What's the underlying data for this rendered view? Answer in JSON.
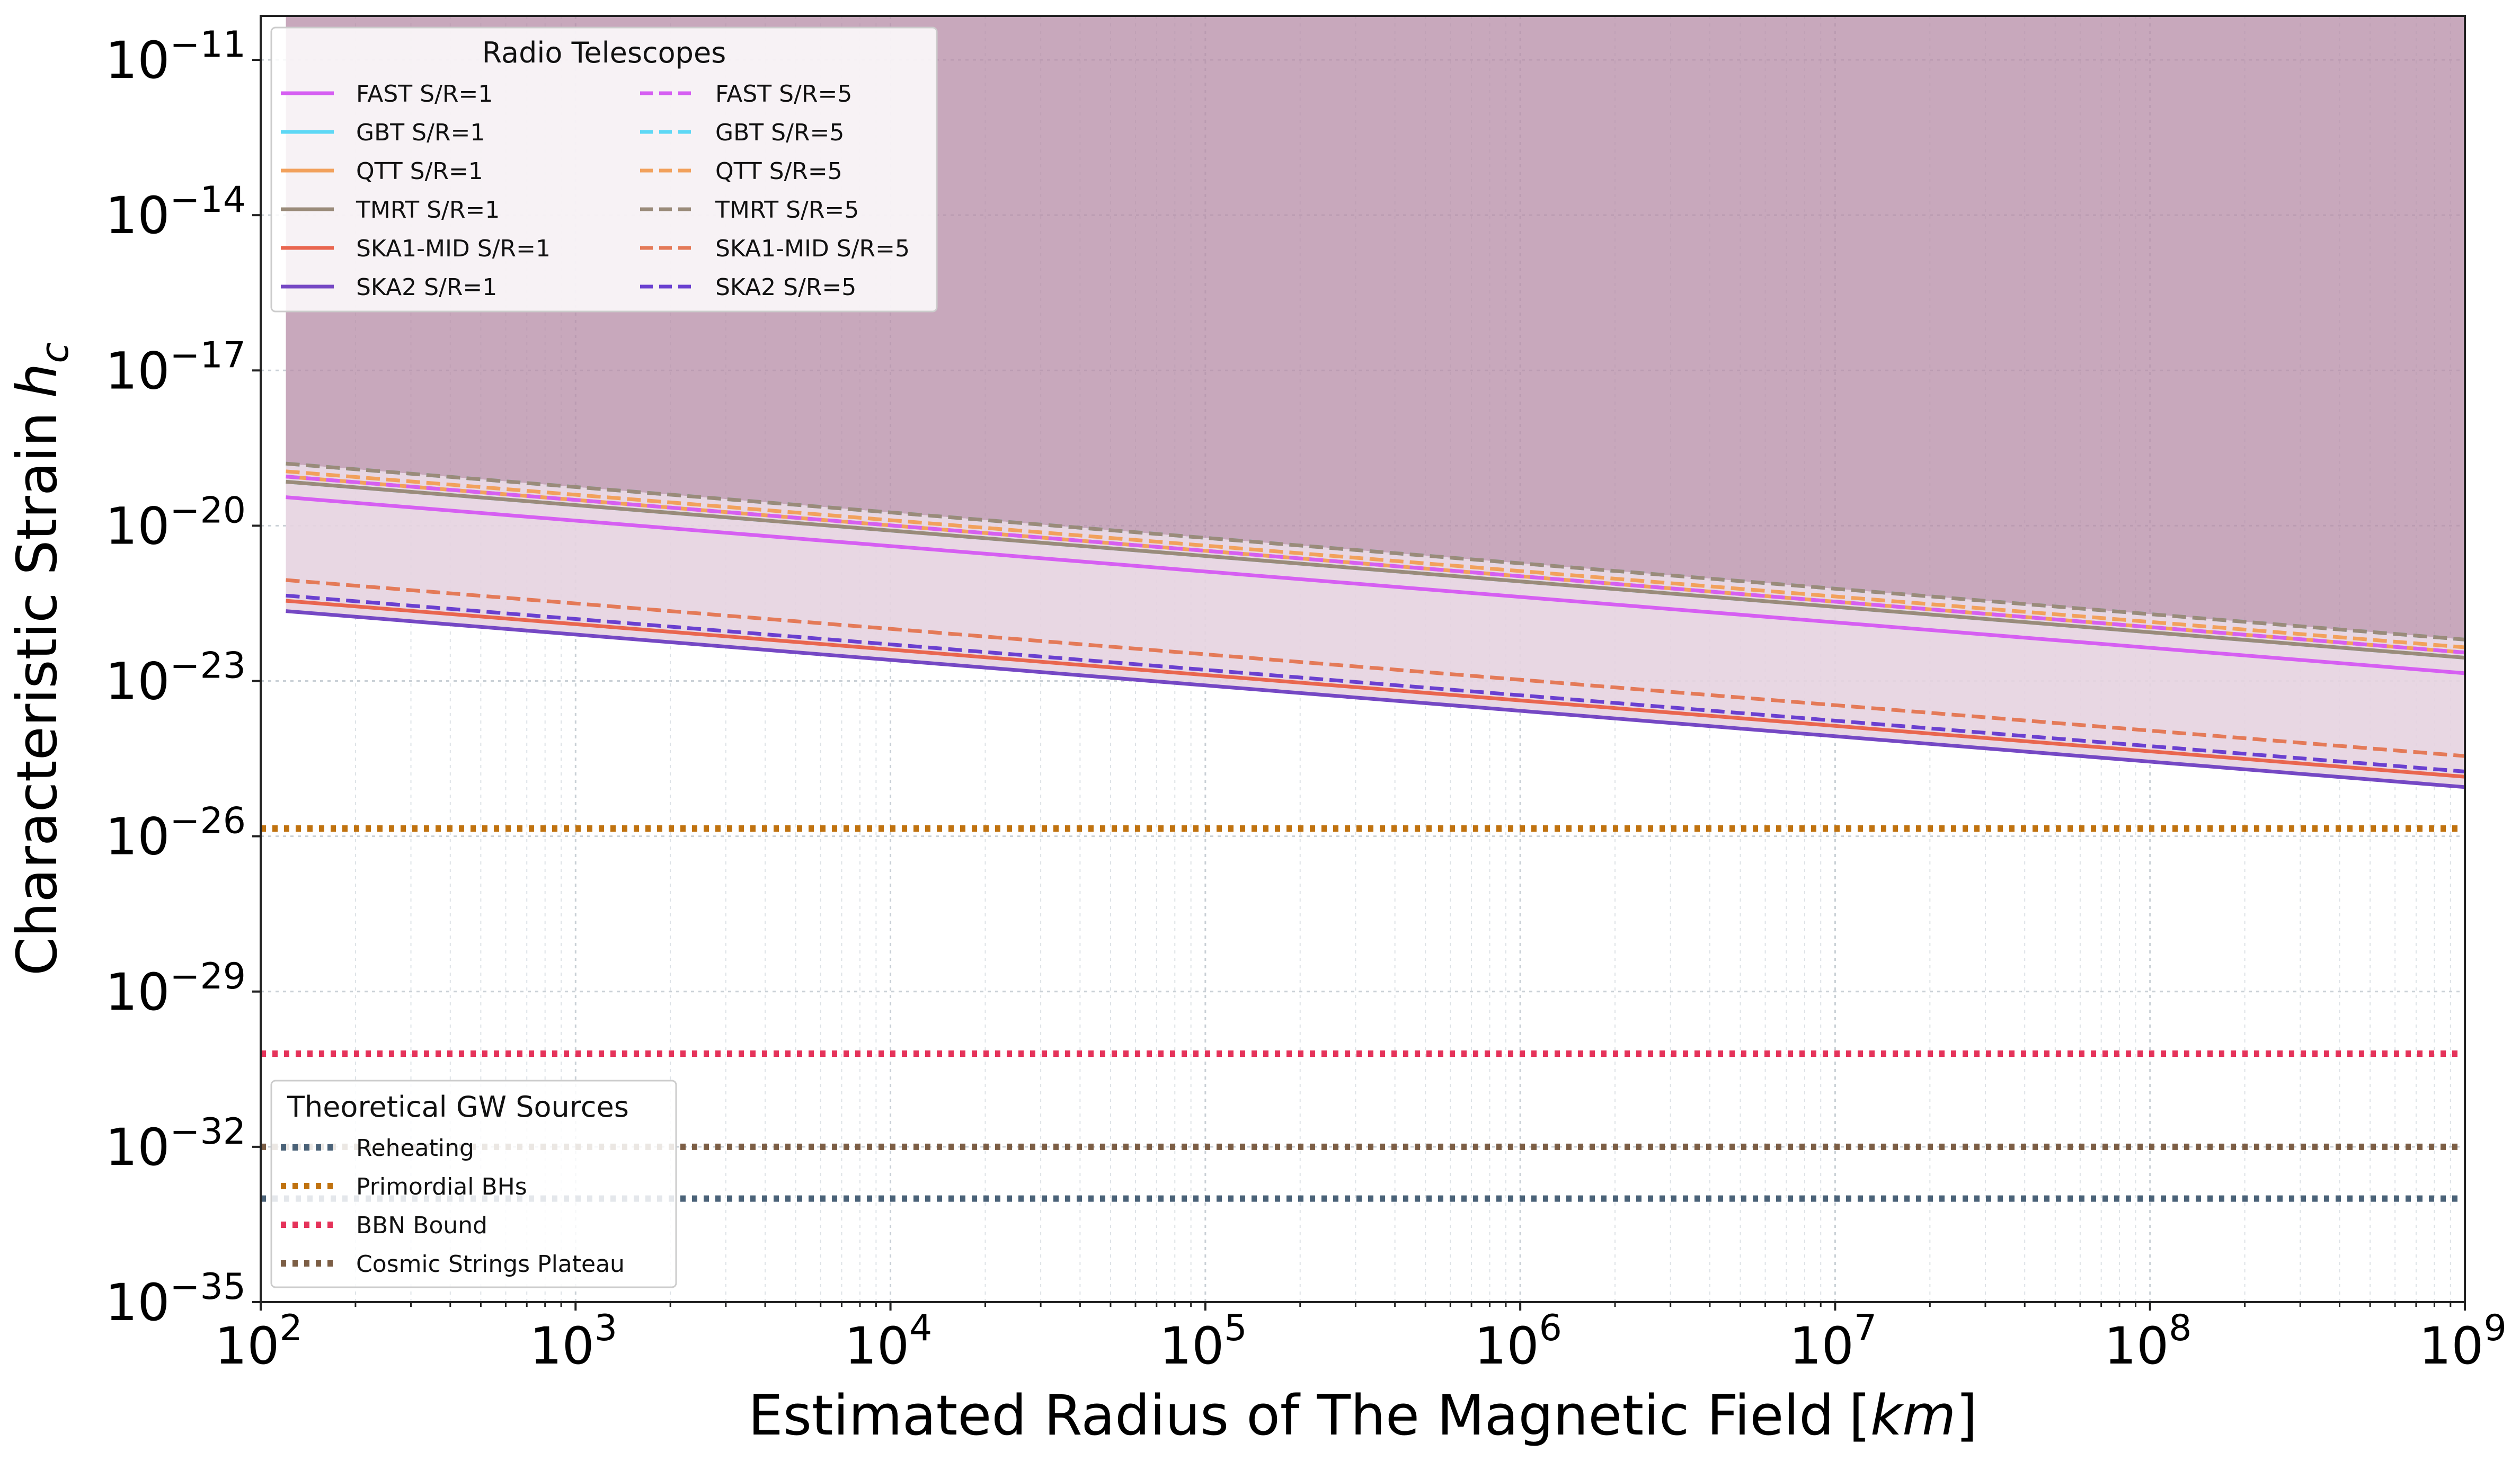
{
  "chart_data": {
    "type": "line",
    "title": "",
    "xlabel": "Estimated Radius of The Magnetic Field",
    "xlabel_unit": "km",
    "ylabel": "Characteristic Strain",
    "ylabel_symbol": "h",
    "ylabel_subscript": "c",
    "xscale": "log",
    "yscale": "log",
    "xlim_exp": [
      2,
      9
    ],
    "ylim_exp": [
      -35,
      -10.15
    ],
    "grid": true,
    "x_ticks": [
      {
        "base": "10",
        "exp": "2",
        "value": 2
      },
      {
        "base": "10",
        "exp": "3",
        "value": 3
      },
      {
        "base": "10",
        "exp": "4",
        "value": 4
      },
      {
        "base": "10",
        "exp": "5",
        "value": 5
      },
      {
        "base": "10",
        "exp": "6",
        "value": 6
      },
      {
        "base": "10",
        "exp": "7",
        "value": 7
      },
      {
        "base": "10",
        "exp": "8",
        "value": 8
      },
      {
        "base": "10",
        "exp": "9",
        "value": 9
      }
    ],
    "y_ticks": [
      {
        "base": "10",
        "exp": "−11",
        "value": -11
      },
      {
        "base": "10",
        "exp": "−14",
        "value": -14
      },
      {
        "base": "10",
        "exp": "−17",
        "value": -17
      },
      {
        "base": "10",
        "exp": "−20",
        "value": -20
      },
      {
        "base": "10",
        "exp": "−23",
        "value": -23
      },
      {
        "base": "10",
        "exp": "−26",
        "value": -26
      },
      {
        "base": "10",
        "exp": "−29",
        "value": -29
      },
      {
        "base": "10",
        "exp": "−32",
        "value": -32
      },
      {
        "base": "10",
        "exp": "−35",
        "value": -35
      }
    ],
    "x_data_range_log10": [
      2.08,
      9
    ],
    "telescopes": [
      {
        "name": "FAST S/R=1",
        "style": "solid",
        "color": "#d65ff2",
        "log10_hc": [
          -19.45,
          -22.85
        ]
      },
      {
        "name": "GBT S/R=1",
        "style": "solid",
        "color": "#5ed8f5",
        "log10_hc": [
          -19.15,
          -22.55
        ]
      },
      {
        "name": "QTT S/R=1",
        "style": "solid",
        "color": "#f2a15c",
        "log10_hc": [
          -19.05,
          -22.45
        ]
      },
      {
        "name": "TMRT S/R=1",
        "style": "solid",
        "color": "#9a8b7a",
        "log10_hc": [
          -19.15,
          -22.55
        ]
      },
      {
        "name": "SKA1-MID S/R=1",
        "style": "solid",
        "color": "#e9664f",
        "log10_hc": [
          -21.45,
          -24.85
        ]
      },
      {
        "name": "SKA2 S/R=1",
        "style": "solid",
        "color": "#7548c4",
        "log10_hc": [
          -21.65,
          -25.05
        ]
      },
      {
        "name": "FAST S/R=5",
        "style": "dashed",
        "color": "#d65ff2",
        "log10_hc": [
          -19.05,
          -22.45
        ]
      },
      {
        "name": "GBT S/R=5",
        "style": "dashed",
        "color": "#5ed8f5",
        "log10_hc": [
          -18.8,
          -22.2
        ]
      },
      {
        "name": "QTT S/R=5",
        "style": "dashed",
        "color": "#f2a15c",
        "log10_hc": [
          -18.95,
          -22.35
        ]
      },
      {
        "name": "TMRT S/R=5",
        "style": "dashed",
        "color": "#9a8b7a",
        "log10_hc": [
          -18.8,
          -22.2
        ]
      },
      {
        "name": "SKA1-MID S/R=5",
        "style": "dashed",
        "color": "#e47a58",
        "log10_hc": [
          -21.05,
          -24.45
        ]
      },
      {
        "name": "SKA2 S/R=5",
        "style": "dashed",
        "color": "#6a40d0",
        "log10_hc": [
          -21.35,
          -24.75
        ]
      }
    ],
    "sources": [
      {
        "name": "Reheating",
        "color": "#4a6278",
        "log10_hc": -33.0
      },
      {
        "name": "Primordial BHs",
        "color": "#c0720f",
        "log10_hc": -25.85
      },
      {
        "name": "BBN Bound",
        "color": "#e5335a",
        "log10_hc": -30.2
      },
      {
        "name": "Cosmic Strings Plateau",
        "color": "#7c5e45",
        "log10_hc": -32.0
      }
    ],
    "shaded_regions": [
      {
        "description": "S/R=5 sensitivity region",
        "color": "#b58ba5",
        "lower_line": "TMRT S/R=5 / GBT S/R=5",
        "upper_log10": -10.15
      },
      {
        "description": "S/R=1 sensitivity region",
        "color": "#e6d3e0",
        "lower_line": "SKA2 S/R=1",
        "upper_line": "GBT S/R=5"
      }
    ],
    "legends": [
      {
        "title": "Radio Telescopes",
        "position": "top-left"
      },
      {
        "title": "Theoretical GW Sources",
        "position": "bottom-left"
      }
    ]
  }
}
